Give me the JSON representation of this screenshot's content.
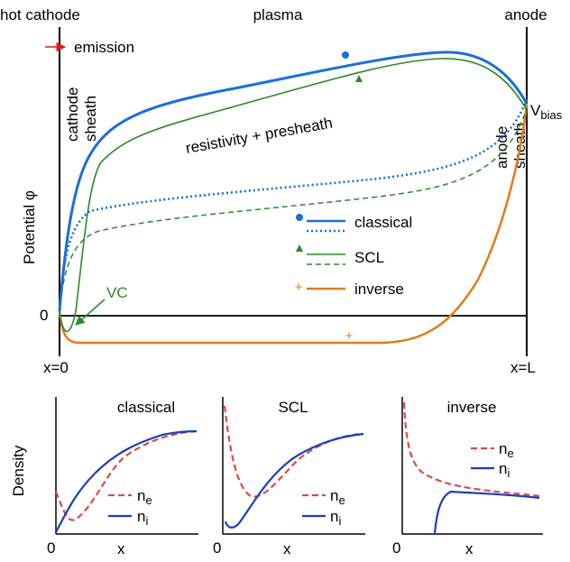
{
  "main": {
    "labels": {
      "hot_cathode": "hot cathode",
      "plasma": "plasma",
      "anode": "anode",
      "emission": "emission",
      "cathode_sheath_1": "cathode",
      "cathode_sheath_2": "sheath",
      "anode_sheath_1": "anode",
      "anode_sheath_2": "sheath",
      "resistivity": "resistivity + presheath",
      "v_bias": "V",
      "v_bias_sub": "bias",
      "y_axis": "Potential φ",
      "zero": "0",
      "x0": "x=0",
      "xL": "x=L",
      "vc": "VC"
    },
    "legend": [
      {
        "name": "classical",
        "color": "#1a6fd8"
      },
      {
        "name": "SCL",
        "color": "#2a8a2a"
      },
      {
        "name": "inverse",
        "color": "#e07b1a"
      }
    ]
  },
  "density_panels": {
    "y_label": "Density",
    "x_label": "x",
    "origin": "0",
    "ne_label": "n",
    "ne_sub": "e",
    "ni_label": "n",
    "ni_sub": "i",
    "titles": [
      "classical",
      "SCL",
      "inverse"
    ],
    "ne_color": "#d94a4a",
    "ni_color": "#1a3fb8"
  }
}
